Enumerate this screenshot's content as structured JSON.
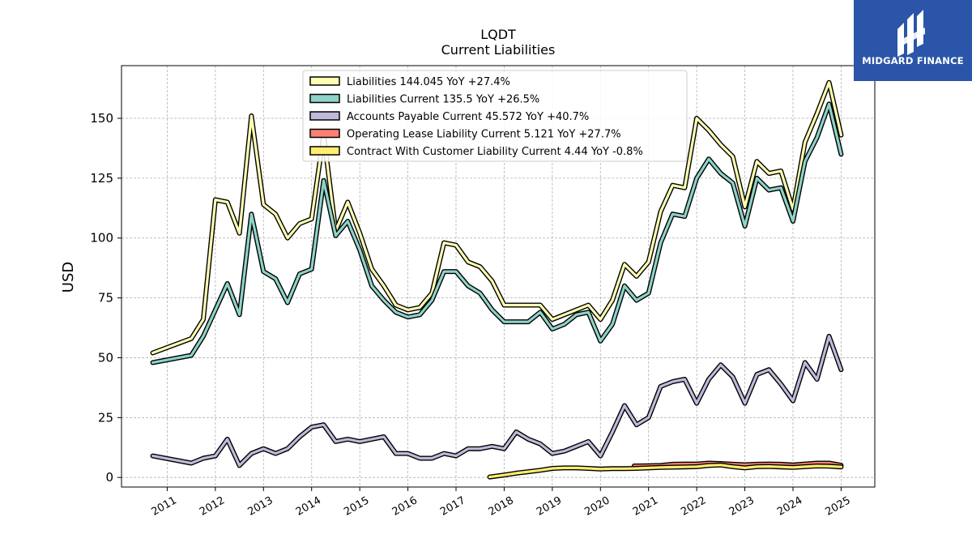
{
  "chart_data": {
    "type": "line",
    "title": "LQDT",
    "subtitle": "Current  Liabilities",
    "ylabel": "USD",
    "xlabel": "",
    "ylim": [
      -4,
      172
    ],
    "xlim": [
      2010.05,
      2025.7
    ],
    "yticks": [
      0,
      25,
      50,
      75,
      100,
      125,
      150
    ],
    "xticks": [
      2011,
      2012,
      2013,
      2014,
      2015,
      2016,
      2017,
      2018,
      2019,
      2020,
      2021,
      2022,
      2023,
      2024,
      2025
    ],
    "grid": true,
    "legend_position": "top-center",
    "series": [
      {
        "name": "Liabilities  144.045 YoY +27.4%",
        "color": "#ffffb3",
        "x": [
          2010.7,
          2011.5,
          2011.75,
          2012.0,
          2012.25,
          2012.5,
          2012.75,
          2013.0,
          2013.25,
          2013.5,
          2013.75,
          2014.0,
          2014.25,
          2014.5,
          2014.75,
          2015.0,
          2015.25,
          2015.5,
          2015.75,
          2016.0,
          2016.25,
          2016.5,
          2016.75,
          2017.0,
          2017.25,
          2017.5,
          2017.75,
          2018.0,
          2018.25,
          2018.5,
          2018.75,
          2019.0,
          2019.25,
          2019.5,
          2019.75,
          2020.0,
          2020.25,
          2020.5,
          2020.75,
          2021.0,
          2021.25,
          2021.5,
          2021.75,
          2022.0,
          2022.25,
          2022.5,
          2022.75,
          2023.0,
          2023.25,
          2023.5,
          2023.75,
          2024.0,
          2024.25,
          2024.5,
          2024.75,
          2025.0
        ],
        "values": [
          52,
          58,
          66,
          116,
          115,
          102,
          151,
          114,
          110,
          100,
          106,
          108,
          143,
          103,
          115,
          102,
          87,
          80,
          72,
          70,
          71,
          77,
          98,
          97,
          90,
          88,
          82,
          72,
          72,
          72,
          72,
          66,
          68,
          70,
          72,
          66,
          74,
          89,
          84,
          90,
          111,
          122,
          121,
          150,
          145,
          139,
          134,
          113,
          132,
          127,
          128,
          112,
          140,
          152,
          165,
          143
        ]
      },
      {
        "name": "Liabilities Current  135.5 YoY +26.5%",
        "color": "#8dd3c7",
        "x": [
          2010.7,
          2011.5,
          2011.75,
          2012.0,
          2012.25,
          2012.5,
          2012.75,
          2013.0,
          2013.25,
          2013.5,
          2013.75,
          2014.0,
          2014.25,
          2014.5,
          2014.75,
          2015.0,
          2015.25,
          2015.5,
          2015.75,
          2016.0,
          2016.25,
          2016.5,
          2016.75,
          2017.0,
          2017.25,
          2017.5,
          2017.75,
          2018.0,
          2018.25,
          2018.5,
          2018.75,
          2019.0,
          2019.25,
          2019.5,
          2019.75,
          2020.0,
          2020.25,
          2020.5,
          2020.75,
          2021.0,
          2021.25,
          2021.5,
          2021.75,
          2022.0,
          2022.25,
          2022.5,
          2022.75,
          2023.0,
          2023.25,
          2023.5,
          2023.75,
          2024.0,
          2024.25,
          2024.5,
          2024.75,
          2025.0
        ],
        "values": [
          48,
          51,
          59,
          70,
          81,
          68,
          110,
          86,
          83,
          73,
          85,
          87,
          124,
          101,
          107,
          95,
          80,
          74,
          69,
          67,
          68,
          74,
          86,
          86,
          80,
          77,
          70,
          65,
          65,
          65,
          69,
          62,
          64,
          68,
          69,
          57,
          64,
          80,
          74,
          77,
          98,
          110,
          109,
          125,
          133,
          127,
          123,
          105,
          125,
          120,
          121,
          107,
          132,
          142,
          156,
          135
        ]
      },
      {
        "name": "Accounts Payable Current  45.572 YoY +40.7%",
        "color": "#bebada",
        "x": [
          2010.7,
          2011.5,
          2011.75,
          2012.0,
          2012.25,
          2012.5,
          2012.75,
          2013.0,
          2013.25,
          2013.5,
          2013.75,
          2014.0,
          2014.25,
          2014.5,
          2014.75,
          2015.0,
          2015.25,
          2015.5,
          2015.75,
          2016.0,
          2016.25,
          2016.5,
          2016.75,
          2017.0,
          2017.25,
          2017.5,
          2017.75,
          2018.0,
          2018.25,
          2018.5,
          2018.75,
          2019.0,
          2019.25,
          2019.5,
          2019.75,
          2020.0,
          2020.25,
          2020.5,
          2020.75,
          2021.0,
          2021.25,
          2021.5,
          2021.75,
          2022.0,
          2022.25,
          2022.5,
          2022.75,
          2023.0,
          2023.25,
          2023.5,
          2023.75,
          2024.0,
          2024.25,
          2024.5,
          2024.75,
          2025.0
        ],
        "values": [
          9,
          6,
          8,
          9,
          16,
          5,
          10,
          12,
          10,
          12,
          17,
          21,
          22,
          15,
          16,
          15,
          16,
          17,
          10,
          10,
          8,
          8,
          10,
          9,
          12,
          12,
          13,
          12,
          19,
          16,
          14,
          10,
          11,
          13,
          15,
          9,
          19,
          30,
          22,
          25,
          38,
          40,
          41,
          31,
          41,
          47,
          42,
          31,
          43,
          45,
          39,
          32,
          48,
          41,
          59,
          45
        ]
      },
      {
        "name": "Operating Lease Liability Current  5.121 YoY +27.7%",
        "color": "#fb8072",
        "x": [
          2020.7,
          2021.0,
          2021.25,
          2021.5,
          2021.75,
          2022.0,
          2022.25,
          2022.5,
          2022.75,
          2023.0,
          2023.25,
          2023.5,
          2023.75,
          2024.0,
          2024.25,
          2024.5,
          2024.75,
          2025.0
        ],
        "values": [
          4.8,
          4.9,
          5.0,
          5.5,
          5.6,
          5.6,
          6.0,
          5.8,
          5.5,
          5.3,
          5.5,
          5.6,
          5.5,
          5.2,
          5.6,
          6.0,
          6.0,
          5.1
        ]
      },
      {
        "name": "Contract With Customer Liability Current  4.44 YoY -0.8%",
        "color": "#ffed6f",
        "x": [
          2017.7,
          2018.0,
          2018.25,
          2018.5,
          2018.75,
          2019.0,
          2019.25,
          2019.5,
          2019.75,
          2020.0,
          2020.25,
          2020.5,
          2020.75,
          2021.0,
          2021.25,
          2021.5,
          2021.75,
          2022.0,
          2022.25,
          2022.5,
          2022.75,
          2023.0,
          2023.25,
          2023.5,
          2023.75,
          2024.0,
          2024.25,
          2024.5,
          2024.75,
          2025.0
        ],
        "values": [
          0.2,
          1.0,
          1.8,
          2.4,
          3.0,
          3.8,
          4.0,
          4.0,
          3.8,
          3.5,
          3.7,
          3.7,
          3.8,
          4.0,
          4.2,
          4.3,
          4.4,
          4.5,
          5.0,
          5.2,
          4.5,
          4.0,
          4.5,
          4.6,
          4.4,
          4.2,
          4.5,
          4.8,
          4.7,
          4.4
        ]
      }
    ]
  },
  "logo": {
    "text": "MIDGARD FINANCE",
    "background": "#2a55a8"
  }
}
